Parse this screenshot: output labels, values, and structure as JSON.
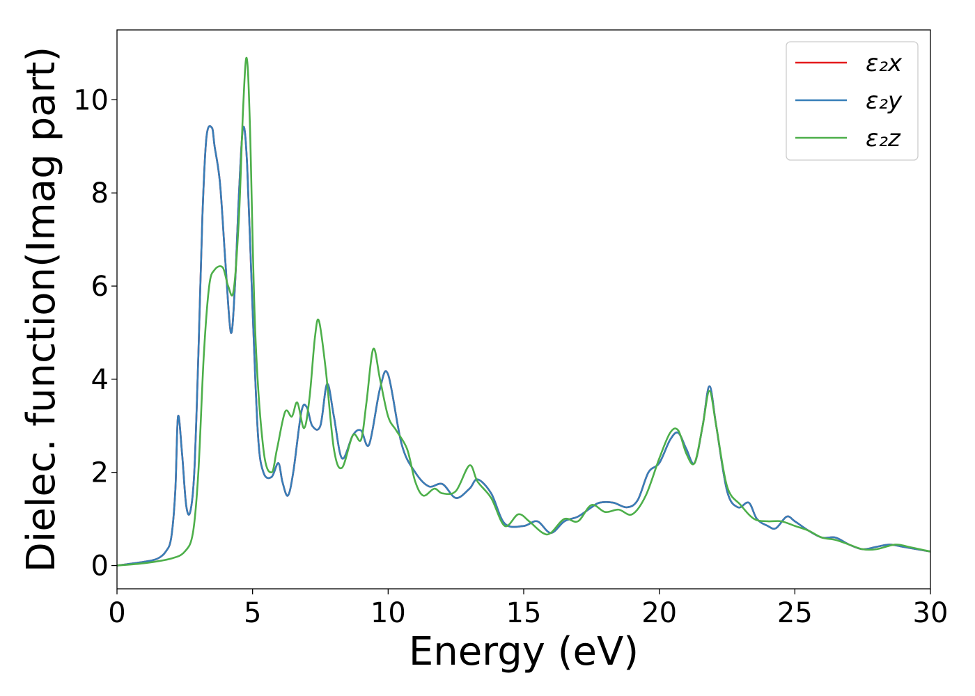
{
  "chart_data": {
    "type": "line",
    "xlabel": "Energy (eV)",
    "ylabel": "Dielec. function(Imag part)",
    "xlim": [
      0,
      30
    ],
    "ylim": [
      -0.5,
      11.5
    ],
    "xticks": [
      0,
      5,
      10,
      15,
      20,
      25,
      30
    ],
    "yticks": [
      0,
      2,
      4,
      6,
      8,
      10
    ],
    "grid": false,
    "legend_position": "top-right",
    "series": [
      {
        "name": "ε₂x",
        "color": "#e41a1c",
        "x": [
          0,
          1,
          1.5,
          1.8,
          2.0,
          2.15,
          2.25,
          2.4,
          2.55,
          2.7,
          2.85,
          3.0,
          3.15,
          3.3,
          3.5,
          3.6,
          3.8,
          4.0,
          4.2,
          4.35,
          4.5,
          4.65,
          4.8,
          5.0,
          5.2,
          5.4,
          5.7,
          5.95,
          6.1,
          6.3,
          6.5,
          6.8,
          7.0,
          7.2,
          7.5,
          7.75,
          8.0,
          8.3,
          8.7,
          9.0,
          9.3,
          9.7,
          10.0,
          10.5,
          11.0,
          11.5,
          12.0,
          12.5,
          13.0,
          13.3,
          13.8,
          14.3,
          15.0,
          15.5,
          16.0,
          16.5,
          17.0,
          17.5,
          17.8,
          18.3,
          18.8,
          19.2,
          19.6,
          20.0,
          20.4,
          20.7,
          21.0,
          21.3,
          21.6,
          21.85,
          22.1,
          22.5,
          22.9,
          23.3,
          23.6,
          24.0,
          24.3,
          24.7,
          25.0,
          25.5,
          26.0,
          26.5,
          27.0,
          27.5,
          28.0,
          28.5,
          29.0,
          29.5,
          30.0
        ],
        "y": [
          0.0,
          0.08,
          0.15,
          0.3,
          0.6,
          1.6,
          3.2,
          2.4,
          1.3,
          1.15,
          2.0,
          4.5,
          7.5,
          9.2,
          9.4,
          9.0,
          8.2,
          6.5,
          5.0,
          6.0,
          8.0,
          9.4,
          8.6,
          5.5,
          2.8,
          2.0,
          1.9,
          2.2,
          1.8,
          1.5,
          2.0,
          3.3,
          3.4,
          3.0,
          3.0,
          3.9,
          3.2,
          2.3,
          2.8,
          2.9,
          2.6,
          3.8,
          4.1,
          2.6,
          2.0,
          1.7,
          1.75,
          1.45,
          1.65,
          1.85,
          1.55,
          0.9,
          0.85,
          0.95,
          0.7,
          0.95,
          1.05,
          1.25,
          1.35,
          1.35,
          1.25,
          1.4,
          2.0,
          2.2,
          2.7,
          2.85,
          2.5,
          2.2,
          3.0,
          3.85,
          3.0,
          1.6,
          1.25,
          1.35,
          1.0,
          0.85,
          0.8,
          1.05,
          0.95,
          0.75,
          0.6,
          0.6,
          0.45,
          0.35,
          0.4,
          0.45,
          0.4,
          0.35,
          0.3
        ]
      },
      {
        "name": "ε₂y",
        "color": "#377eb8",
        "x": [
          0,
          1,
          1.5,
          1.8,
          2.0,
          2.15,
          2.25,
          2.4,
          2.55,
          2.7,
          2.85,
          3.0,
          3.15,
          3.3,
          3.5,
          3.6,
          3.8,
          4.0,
          4.2,
          4.35,
          4.5,
          4.65,
          4.8,
          5.0,
          5.2,
          5.4,
          5.7,
          5.95,
          6.1,
          6.3,
          6.5,
          6.8,
          7.0,
          7.2,
          7.5,
          7.75,
          8.0,
          8.3,
          8.7,
          9.0,
          9.3,
          9.7,
          10.0,
          10.5,
          11.0,
          11.5,
          12.0,
          12.5,
          13.0,
          13.3,
          13.8,
          14.3,
          15.0,
          15.5,
          16.0,
          16.5,
          17.0,
          17.5,
          17.8,
          18.3,
          18.8,
          19.2,
          19.6,
          20.0,
          20.4,
          20.7,
          21.0,
          21.3,
          21.6,
          21.85,
          22.1,
          22.5,
          22.9,
          23.3,
          23.6,
          24.0,
          24.3,
          24.7,
          25.0,
          25.5,
          26.0,
          26.5,
          27.0,
          27.5,
          28.0,
          28.5,
          29.0,
          29.5,
          30.0
        ],
        "y": [
          0.0,
          0.08,
          0.15,
          0.3,
          0.6,
          1.6,
          3.2,
          2.4,
          1.3,
          1.15,
          2.0,
          4.5,
          7.5,
          9.2,
          9.4,
          9.0,
          8.2,
          6.5,
          5.0,
          6.0,
          8.0,
          9.4,
          8.6,
          5.5,
          2.8,
          2.0,
          1.9,
          2.2,
          1.8,
          1.5,
          2.0,
          3.3,
          3.4,
          3.0,
          3.0,
          3.9,
          3.2,
          2.3,
          2.8,
          2.9,
          2.6,
          3.8,
          4.1,
          2.6,
          2.0,
          1.7,
          1.75,
          1.45,
          1.65,
          1.85,
          1.55,
          0.9,
          0.85,
          0.95,
          0.7,
          0.95,
          1.05,
          1.25,
          1.35,
          1.35,
          1.25,
          1.4,
          2.0,
          2.2,
          2.7,
          2.85,
          2.5,
          2.2,
          3.0,
          3.85,
          3.0,
          1.6,
          1.25,
          1.35,
          1.0,
          0.85,
          0.8,
          1.05,
          0.95,
          0.75,
          0.6,
          0.6,
          0.45,
          0.35,
          0.4,
          0.45,
          0.4,
          0.35,
          0.3
        ]
      },
      {
        "name": "ε₂z",
        "color": "#4daf4a",
        "x": [
          0,
          1,
          2.0,
          2.5,
          2.8,
          3.0,
          3.2,
          3.4,
          3.6,
          3.9,
          4.1,
          4.3,
          4.5,
          4.65,
          4.78,
          4.9,
          5.1,
          5.4,
          5.7,
          5.9,
          6.2,
          6.45,
          6.65,
          6.9,
          7.1,
          7.3,
          7.45,
          7.7,
          8.0,
          8.3,
          8.7,
          9.0,
          9.2,
          9.45,
          9.7,
          10.0,
          10.3,
          10.7,
          11.0,
          11.3,
          11.7,
          12.0,
          12.5,
          13.0,
          13.3,
          13.8,
          14.3,
          14.8,
          15.2,
          15.7,
          16.0,
          16.5,
          17.0,
          17.5,
          18.0,
          18.5,
          19.0,
          19.5,
          20.0,
          20.4,
          20.7,
          21.0,
          21.3,
          21.6,
          21.85,
          22.1,
          22.5,
          23.0,
          23.5,
          24.0,
          24.5,
          25.0,
          25.5,
          26.0,
          26.5,
          27.0,
          27.5,
          28.0,
          28.7,
          29.2,
          30.0
        ],
        "y": [
          0.0,
          0.05,
          0.15,
          0.3,
          0.7,
          2.0,
          4.5,
          6.0,
          6.35,
          6.4,
          6.0,
          5.9,
          7.5,
          9.8,
          10.9,
          9.5,
          5.0,
          2.5,
          2.0,
          2.5,
          3.3,
          3.2,
          3.5,
          2.95,
          3.6,
          4.9,
          5.25,
          4.2,
          2.5,
          2.1,
          2.8,
          2.7,
          3.5,
          4.65,
          4.0,
          3.2,
          2.9,
          2.5,
          1.8,
          1.5,
          1.65,
          1.55,
          1.6,
          2.15,
          1.8,
          1.45,
          0.85,
          1.1,
          0.95,
          0.7,
          0.7,
          1.0,
          0.95,
          1.3,
          1.15,
          1.2,
          1.1,
          1.5,
          2.3,
          2.85,
          2.9,
          2.4,
          2.2,
          3.0,
          3.75,
          3.0,
          1.7,
          1.3,
          1.0,
          0.95,
          0.95,
          0.85,
          0.75,
          0.6,
          0.55,
          0.45,
          0.35,
          0.35,
          0.45,
          0.4,
          0.3
        ]
      }
    ]
  }
}
